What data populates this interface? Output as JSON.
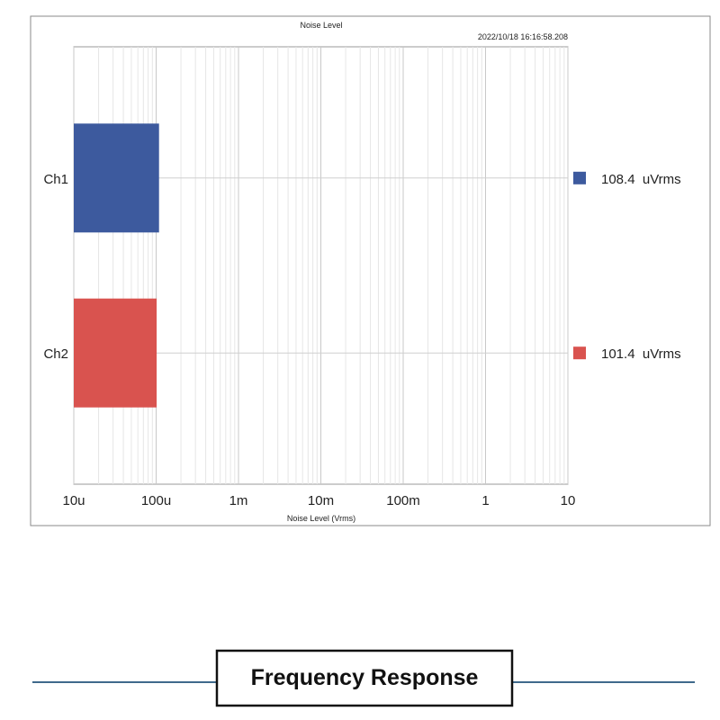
{
  "chart_data": {
    "type": "bar",
    "orientation": "horizontal",
    "title": "Noise Level",
    "timestamp": "2022/10/18 16:16:58.208",
    "xlabel": "Noise Level (Vrms)",
    "ylabel": "",
    "x_scale": "log",
    "xlim": [
      1e-05,
      10
    ],
    "x_ticks": [
      {
        "value": 1e-05,
        "label": "10u"
      },
      {
        "value": 0.0001,
        "label": "100u"
      },
      {
        "value": 0.001,
        "label": "1m"
      },
      {
        "value": 0.01,
        "label": "10m"
      },
      {
        "value": 0.1,
        "label": "100m"
      },
      {
        "value": 1,
        "label": "1"
      },
      {
        "value": 10,
        "label": "10"
      }
    ],
    "grid": true,
    "categories": [
      "Ch1",
      "Ch2"
    ],
    "values": [
      0.0001084,
      0.0001014
    ],
    "colors": [
      "#3d5a9e",
      "#d9534f"
    ],
    "legend": [
      {
        "label": "108.4  uVrms",
        "color": "#3d5a9e"
      },
      {
        "label": "101.4  uVrms",
        "color": "#d9534f"
      }
    ],
    "legend_position": "right"
  },
  "section_heading": "Frequency Response"
}
